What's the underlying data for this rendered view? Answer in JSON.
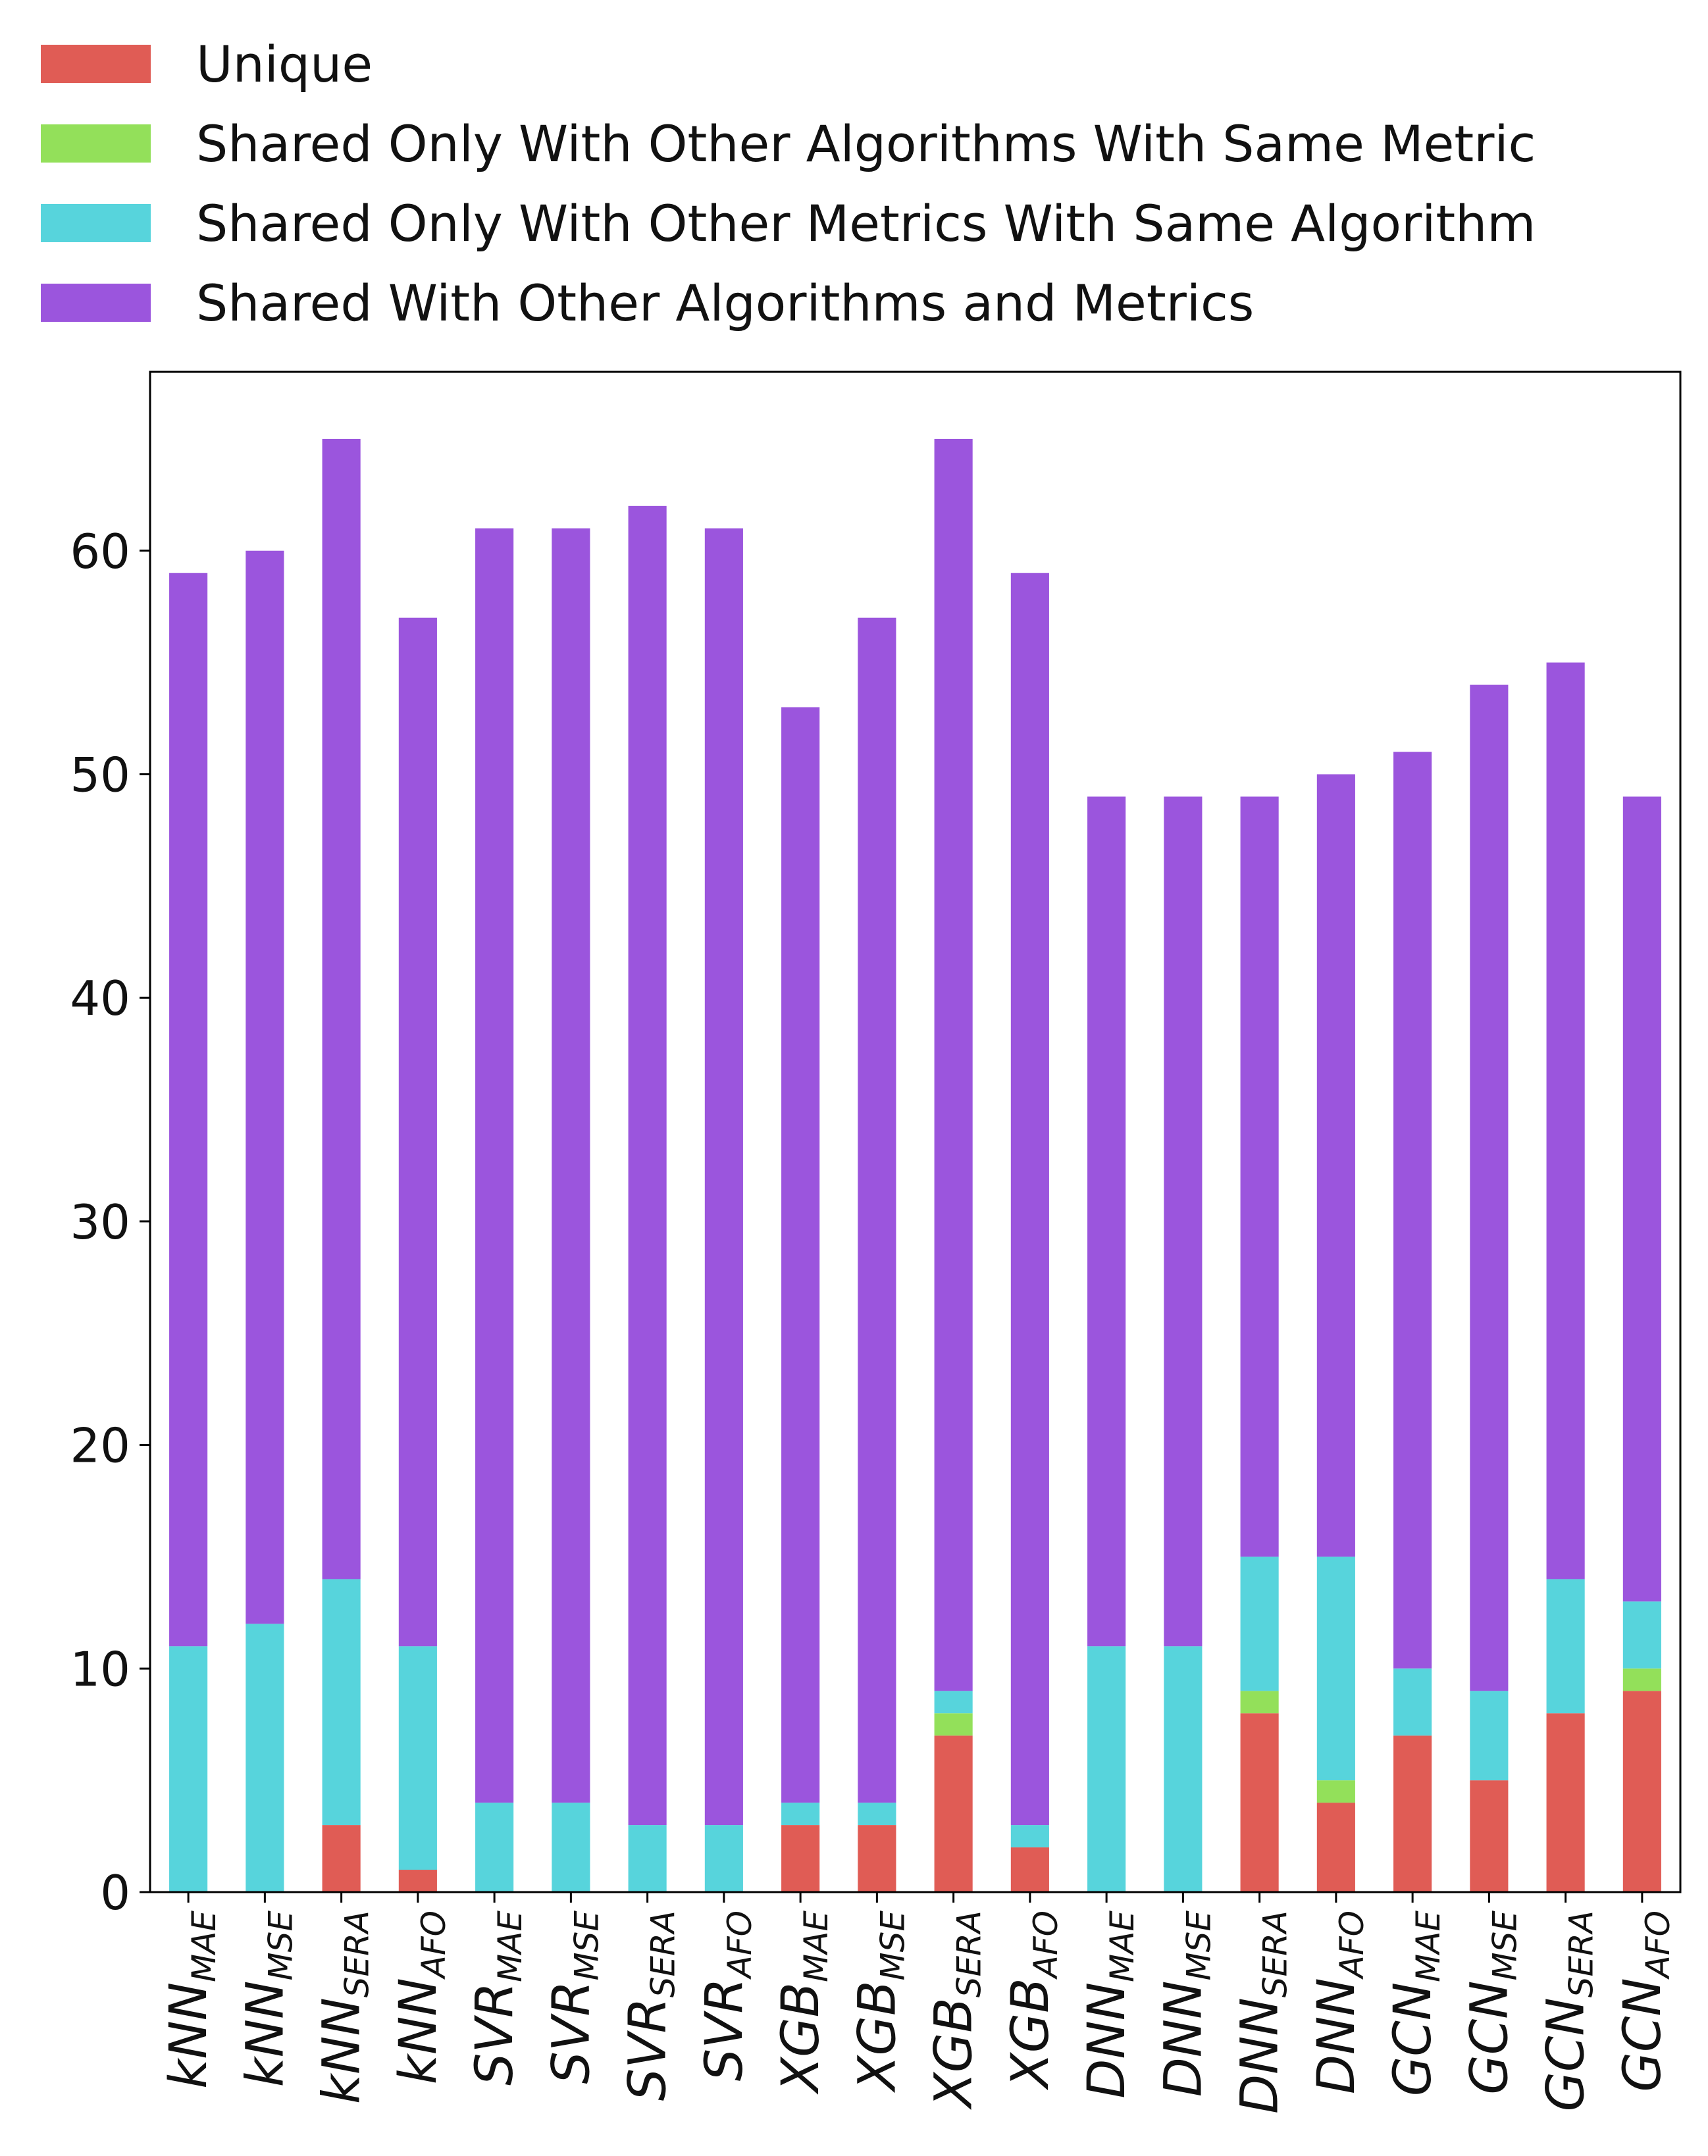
{
  "chart_data": {
    "type": "bar",
    "stacked": true,
    "title": "",
    "xlabel": "",
    "ylabel": "",
    "ylim": [
      0,
      68
    ],
    "yticks": [
      0,
      10,
      20,
      30,
      40,
      50,
      60
    ],
    "grid": false,
    "legend_position": "top",
    "categories": [
      {
        "base": "kNN",
        "sub": "MAE"
      },
      {
        "base": "kNN",
        "sub": "MSE"
      },
      {
        "base": "kNN",
        "sub": "SERA"
      },
      {
        "base": "kNN",
        "sub": "AFO"
      },
      {
        "base": "SVR",
        "sub": "MAE"
      },
      {
        "base": "SVR",
        "sub": "MSE"
      },
      {
        "base": "SVR",
        "sub": "SERA"
      },
      {
        "base": "SVR",
        "sub": "AFO"
      },
      {
        "base": "XGB",
        "sub": "MAE"
      },
      {
        "base": "XGB",
        "sub": "MSE"
      },
      {
        "base": "XGB",
        "sub": "SERA"
      },
      {
        "base": "XGB",
        "sub": "AFO"
      },
      {
        "base": "DNN",
        "sub": "MAE"
      },
      {
        "base": "DNN",
        "sub": "MSE"
      },
      {
        "base": "DNN",
        "sub": "SERA"
      },
      {
        "base": "DNN",
        "sub": "AFO"
      },
      {
        "base": "GCN",
        "sub": "MAE"
      },
      {
        "base": "GCN",
        "sub": "MSE"
      },
      {
        "base": "GCN",
        "sub": "SERA"
      },
      {
        "base": "GCN",
        "sub": "AFO"
      }
    ],
    "series": [
      {
        "name": "Unique",
        "color": "#e05c55",
        "values": [
          0,
          0,
          3,
          1,
          0,
          0,
          0,
          0,
          3,
          3,
          7,
          2,
          0,
          0,
          8,
          4,
          7,
          5,
          8,
          9
        ]
      },
      {
        "name": "Shared Only With Other Algorithms With Same Metric",
        "color": "#93e05a",
        "values": [
          0,
          0,
          0,
          0,
          0,
          0,
          0,
          0,
          0,
          0,
          1,
          0,
          0,
          0,
          1,
          1,
          0,
          0,
          0,
          1
        ]
      },
      {
        "name": "Shared Only With Other Metrics With Same Algorithm",
        "color": "#57d4dc",
        "values": [
          11,
          12,
          11,
          10,
          4,
          4,
          3,
          3,
          1,
          1,
          1,
          1,
          11,
          11,
          6,
          10,
          3,
          4,
          6,
          3
        ]
      },
      {
        "name": "Shared With Other Algorithms and Metrics",
        "color": "#9b55dd",
        "values": [
          48,
          48,
          51,
          46,
          57,
          57,
          59,
          58,
          49,
          53,
          56,
          56,
          38,
          38,
          34,
          35,
          41,
          45,
          41,
          36
        ]
      }
    ]
  }
}
